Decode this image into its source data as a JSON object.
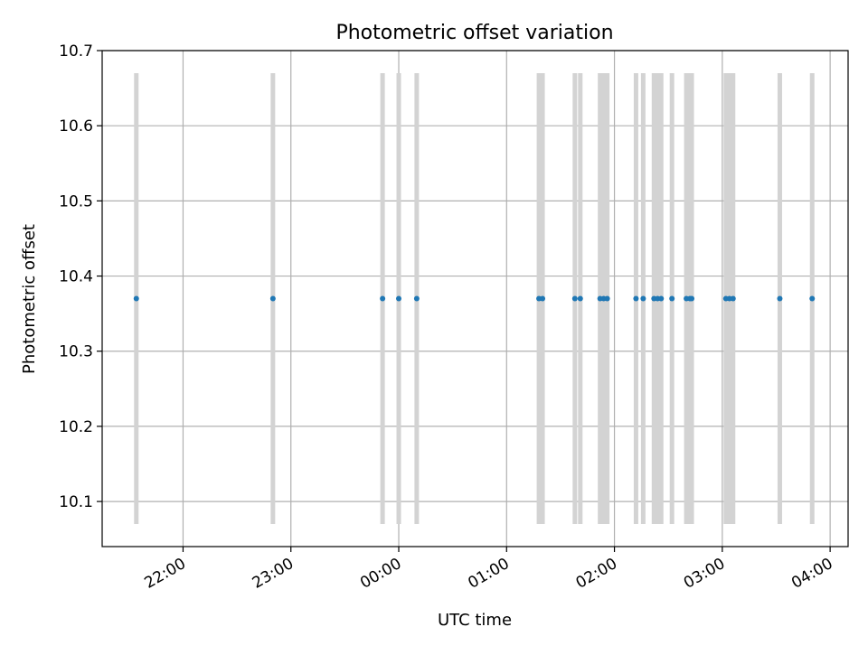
{
  "chart_data": {
    "type": "scatter",
    "title": "Photometric offset variation",
    "xlabel": "UTC time",
    "ylabel": "Photometric offset",
    "xlim": [
      "21:15",
      "04:10"
    ],
    "ylim": [
      10.04,
      10.7
    ],
    "grid": true,
    "x_ticks": [
      "22:00",
      "23:00",
      "00:00",
      "01:00",
      "02:00",
      "03:00",
      "04:00"
    ],
    "y_ticks": [
      "10.1",
      "10.2",
      "10.3",
      "10.4",
      "10.5",
      "10.6",
      "10.7"
    ],
    "x_tick_values": [
      22.0,
      23.0,
      24.0,
      25.0,
      26.0,
      27.0,
      28.0
    ],
    "y_tick_values": [
      10.1,
      10.2,
      10.3,
      10.4,
      10.5,
      10.6,
      10.7
    ],
    "errorbar_range": [
      10.07,
      10.67
    ],
    "point_color": "#1f77b4",
    "errorbar_color": "#d3d3d3",
    "series": [
      {
        "x": [
          "21:34",
          "22:50",
          "23:51",
          "00:00",
          "00:10",
          "01:18",
          "01:20",
          "01:38",
          "01:41",
          "01:52",
          "01:54",
          "01:56",
          "02:12",
          "02:16",
          "02:22",
          "02:24",
          "02:26",
          "02:32",
          "02:40",
          "02:42",
          "02:43",
          "03:02",
          "03:04",
          "03:06",
          "03:32",
          "03:50"
        ],
        "y": [
          10.37,
          10.37,
          10.37,
          10.37,
          10.37,
          10.37,
          10.37,
          10.37,
          10.37,
          10.37,
          10.37,
          10.37,
          10.37,
          10.37,
          10.37,
          10.37,
          10.37,
          10.37,
          10.37,
          10.37,
          10.37,
          10.37,
          10.37,
          10.37,
          10.37,
          10.37
        ],
        "yerr": [
          0.3,
          0.3,
          0.3,
          0.3,
          0.3,
          0.3,
          0.3,
          0.3,
          0.3,
          0.3,
          0.3,
          0.3,
          0.3,
          0.3,
          0.3,
          0.3,
          0.3,
          0.3,
          0.3,
          0.3,
          0.3,
          0.3,
          0.3,
          0.3,
          0.3,
          0.3
        ]
      }
    ]
  }
}
